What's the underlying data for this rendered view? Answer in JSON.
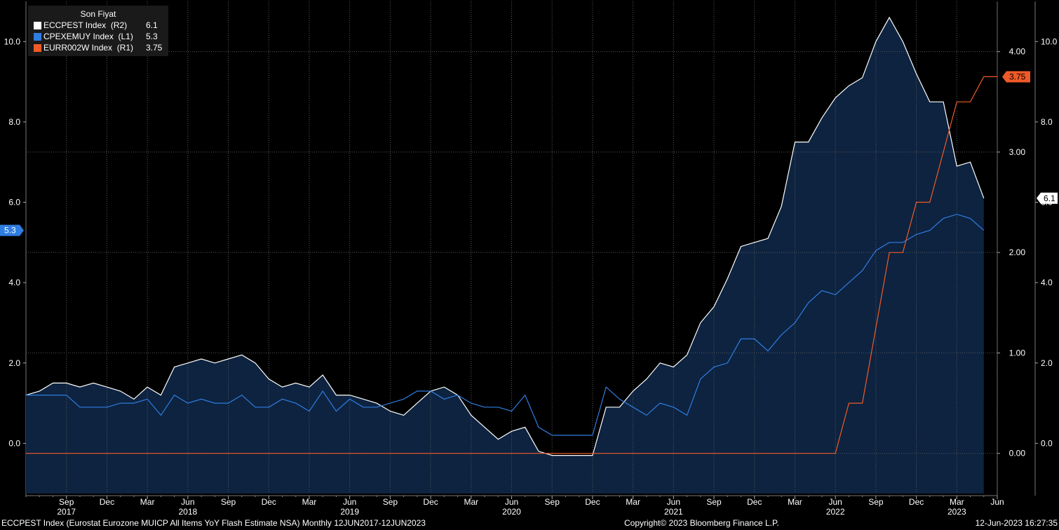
{
  "legend": {
    "header": "Son Fiyat",
    "entries": [
      {
        "name": "ECCPEST Index  (R2)",
        "value": "6.1",
        "color": "#ffffff"
      },
      {
        "name": "CPEXEMUY Index  (L1)",
        "value": "5.3",
        "color": "#2f7de1"
      },
      {
        "name": "EURR002W Index  (R1)",
        "value": "3.75",
        "color": "#f05a28"
      }
    ]
  },
  "footer": {
    "left": "ECCPEST Index (Eurostat Eurozone MUICP All Items YoY Flash Estimate NSA)  Monthly 12JUN2017-12JUN2023",
    "center": "Copyright© 2023 Bloomberg Finance L.P.",
    "right": "12-Jun-2023 16:27:35"
  },
  "chart_data": {
    "type": "line",
    "x_start": "2017-06",
    "x_end": "2023-06",
    "month_ticks": [
      {
        "label": "Sep",
        "date": "2017-09"
      },
      {
        "label": "Dec",
        "date": "2017-12"
      },
      {
        "label": "Mar",
        "date": "2018-03"
      },
      {
        "label": "Jun",
        "date": "2018-06"
      },
      {
        "label": "Sep",
        "date": "2018-09"
      },
      {
        "label": "Dec",
        "date": "2018-12"
      },
      {
        "label": "Mar",
        "date": "2019-03"
      },
      {
        "label": "Jun",
        "date": "2019-06"
      },
      {
        "label": "Sep",
        "date": "2019-09"
      },
      {
        "label": "Dec",
        "date": "2019-12"
      },
      {
        "label": "Mar",
        "date": "2020-03"
      },
      {
        "label": "Jun",
        "date": "2020-06"
      },
      {
        "label": "Sep",
        "date": "2020-09"
      },
      {
        "label": "Dec",
        "date": "2020-12"
      },
      {
        "label": "Mar",
        "date": "2021-03"
      },
      {
        "label": "Jun",
        "date": "2021-06"
      },
      {
        "label": "Sep",
        "date": "2021-09"
      },
      {
        "label": "Dec",
        "date": "2021-12"
      },
      {
        "label": "Mar",
        "date": "2022-03"
      },
      {
        "label": "Jun",
        "date": "2022-06"
      },
      {
        "label": "Sep",
        "date": "2022-09"
      },
      {
        "label": "Dec",
        "date": "2022-12"
      },
      {
        "label": "Mar",
        "date": "2023-03"
      },
      {
        "label": "Jun",
        "date": "2023-06"
      }
    ],
    "year_ticks": [
      {
        "label": "2017",
        "date": "2017-09"
      },
      {
        "label": "2018",
        "date": "2018-06"
      },
      {
        "label": "2019",
        "date": "2019-06"
      },
      {
        "label": "2020",
        "date": "2020-06"
      },
      {
        "label": "2021",
        "date": "2021-06"
      },
      {
        "label": "2022",
        "date": "2022-06"
      },
      {
        "label": "2023",
        "date": "2023-03"
      }
    ],
    "axes": {
      "L1": {
        "range": [
          -1.25,
          11.0
        ],
        "ticks": [
          "0.0",
          "2.0",
          "4.0",
          "6.0",
          "8.0",
          "10.0"
        ],
        "color": "#2f7de1"
      },
      "R1": {
        "range": [
          -0.4,
          4.5
        ],
        "ticks": [
          "0.00",
          "1.00",
          "2.00",
          "3.00",
          "4.00"
        ],
        "color": "#f05a28"
      },
      "R2": {
        "range": [
          -1.25,
          11.0
        ],
        "ticks": [
          "0.0",
          "2.0",
          "4.0",
          "6.0",
          "8.0",
          "10.0"
        ],
        "color": "#ffffff"
      }
    },
    "last_value_labels": [
      {
        "series": "CPEXEMUY Index",
        "axis": "L1",
        "value": 5.3,
        "text": "5.3",
        "color": "#2f7de1"
      },
      {
        "series": "EURR002W Index",
        "axis": "R1",
        "value": 3.75,
        "text": "3.75",
        "color": "#f05a28"
      },
      {
        "series": "ECCPEST Index",
        "axis": "R2",
        "value": 6.1,
        "text": "6.1",
        "color": "#ffffff"
      }
    ],
    "series": [
      {
        "name": "ECCPEST Index",
        "axis": "R2",
        "color": "#ffffff",
        "fill": "#0d2340",
        "x": [
          "2017-06",
          "2017-07",
          "2017-08",
          "2017-09",
          "2017-10",
          "2017-11",
          "2017-12",
          "2018-01",
          "2018-02",
          "2018-03",
          "2018-04",
          "2018-05",
          "2018-06",
          "2018-07",
          "2018-08",
          "2018-09",
          "2018-10",
          "2018-11",
          "2018-12",
          "2019-01",
          "2019-02",
          "2019-03",
          "2019-04",
          "2019-05",
          "2019-06",
          "2019-07",
          "2019-08",
          "2019-09",
          "2019-10",
          "2019-11",
          "2019-12",
          "2020-01",
          "2020-02",
          "2020-03",
          "2020-04",
          "2020-05",
          "2020-06",
          "2020-07",
          "2020-08",
          "2020-09",
          "2020-10",
          "2020-11",
          "2020-12",
          "2021-01",
          "2021-02",
          "2021-03",
          "2021-04",
          "2021-05",
          "2021-06",
          "2021-07",
          "2021-08",
          "2021-09",
          "2021-10",
          "2021-11",
          "2021-12",
          "2022-01",
          "2022-02",
          "2022-03",
          "2022-04",
          "2022-05",
          "2022-06",
          "2022-07",
          "2022-08",
          "2022-09",
          "2022-10",
          "2022-11",
          "2022-12",
          "2023-01",
          "2023-02",
          "2023-03",
          "2023-04",
          "2023-05"
        ],
        "values": [
          1.2,
          1.3,
          1.5,
          1.5,
          1.4,
          1.5,
          1.4,
          1.3,
          1.1,
          1.4,
          1.2,
          1.9,
          2.0,
          2.1,
          2.0,
          2.1,
          2.2,
          2.0,
          1.6,
          1.4,
          1.5,
          1.4,
          1.7,
          1.2,
          1.2,
          1.1,
          1.0,
          0.8,
          0.7,
          1.0,
          1.3,
          1.4,
          1.2,
          0.7,
          0.4,
          0.1,
          0.3,
          0.4,
          -0.2,
          -0.3,
          -0.3,
          -0.3,
          -0.3,
          0.9,
          0.9,
          1.3,
          1.6,
          2.0,
          1.9,
          2.2,
          3.0,
          3.4,
          4.1,
          4.9,
          5.0,
          5.1,
          5.9,
          7.5,
          7.5,
          8.1,
          8.6,
          8.9,
          9.1,
          10.0,
          10.6,
          10.0,
          9.2,
          8.5,
          8.5,
          6.9,
          7.0,
          6.1
        ]
      },
      {
        "name": "CPEXEMUY Index",
        "axis": "L1",
        "color": "#2f7de1",
        "x": [
          "2017-06",
          "2017-07",
          "2017-08",
          "2017-09",
          "2017-10",
          "2017-11",
          "2017-12",
          "2018-01",
          "2018-02",
          "2018-03",
          "2018-04",
          "2018-05",
          "2018-06",
          "2018-07",
          "2018-08",
          "2018-09",
          "2018-10",
          "2018-11",
          "2018-12",
          "2019-01",
          "2019-02",
          "2019-03",
          "2019-04",
          "2019-05",
          "2019-06",
          "2019-07",
          "2019-08",
          "2019-09",
          "2019-10",
          "2019-11",
          "2019-12",
          "2020-01",
          "2020-02",
          "2020-03",
          "2020-04",
          "2020-05",
          "2020-06",
          "2020-07",
          "2020-08",
          "2020-09",
          "2020-10",
          "2020-11",
          "2020-12",
          "2021-01",
          "2021-02",
          "2021-03",
          "2021-04",
          "2021-05",
          "2021-06",
          "2021-07",
          "2021-08",
          "2021-09",
          "2021-10",
          "2021-11",
          "2021-12",
          "2022-01",
          "2022-02",
          "2022-03",
          "2022-04",
          "2022-05",
          "2022-06",
          "2022-07",
          "2022-08",
          "2022-09",
          "2022-10",
          "2022-11",
          "2022-12",
          "2023-01",
          "2023-02",
          "2023-03",
          "2023-04",
          "2023-05"
        ],
        "values": [
          1.2,
          1.2,
          1.2,
          1.2,
          0.9,
          0.9,
          0.9,
          1.0,
          1.0,
          1.1,
          0.7,
          1.2,
          1.0,
          1.1,
          1.0,
          1.0,
          1.2,
          0.9,
          0.9,
          1.1,
          1.0,
          0.8,
          1.3,
          0.8,
          1.1,
          0.9,
          0.9,
          1.0,
          1.1,
          1.3,
          1.3,
          1.1,
          1.2,
          1.0,
          0.9,
          0.9,
          0.8,
          1.2,
          0.4,
          0.2,
          0.2,
          0.2,
          0.2,
          1.4,
          1.1,
          0.9,
          0.7,
          1.0,
          0.9,
          0.7,
          1.6,
          1.9,
          2.0,
          2.6,
          2.6,
          2.3,
          2.7,
          3.0,
          3.5,
          3.8,
          3.7,
          4.0,
          4.3,
          4.8,
          5.0,
          5.0,
          5.2,
          5.3,
          5.6,
          5.7,
          5.6,
          5.3
        ]
      },
      {
        "name": "EURR002W Index",
        "axis": "R1",
        "color": "#f05a28",
        "x": [
          "2017-06",
          "2022-06",
          "2022-07",
          "2022-08",
          "2022-09",
          "2022-10",
          "2022-11",
          "2022-12",
          "2023-01",
          "2023-02",
          "2023-03",
          "2023-04",
          "2023-05",
          "2023-06"
        ],
        "values": [
          0.0,
          0.0,
          0.5,
          0.5,
          1.25,
          2.0,
          2.0,
          2.5,
          2.5,
          3.0,
          3.5,
          3.5,
          3.75,
          3.75
        ]
      }
    ]
  }
}
